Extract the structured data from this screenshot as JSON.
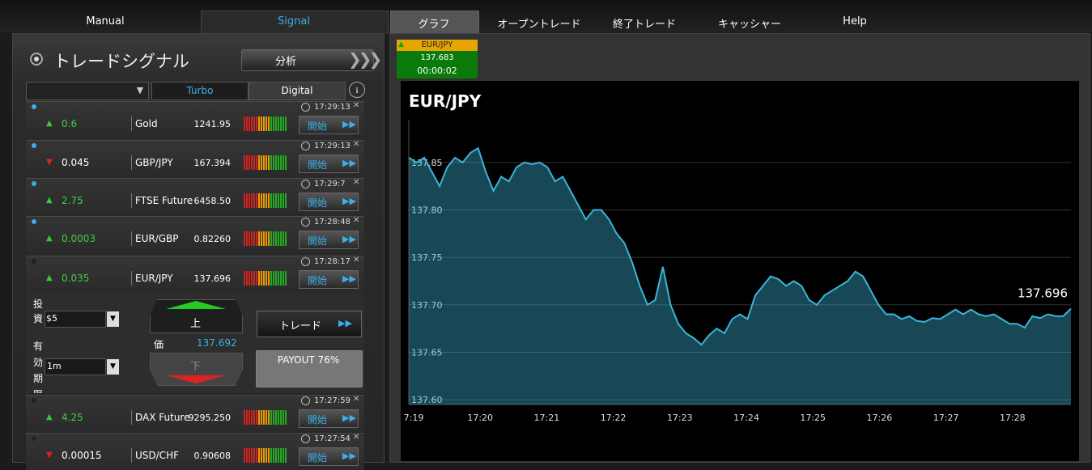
{
  "nav": {
    "tabs": [
      "Manual",
      "Signal",
      "グラフ",
      "オープントレード",
      "終了トレード",
      "キャッシャー",
      "Help"
    ]
  },
  "panel": {
    "title": "トレードシグナル",
    "analyze": "分析",
    "filters": [
      "Turbo",
      "Digital"
    ]
  },
  "signals": [
    {
      "active": true,
      "dir": "up",
      "value": "0.6",
      "asset": "Gold",
      "price": "1241.95",
      "time": "17:29:13",
      "button": "開始"
    },
    {
      "active": true,
      "dir": "down",
      "value": "0.045",
      "asset": "GBP/JPY",
      "price": "167.394",
      "time": "17:29:13",
      "button": "開始"
    },
    {
      "active": true,
      "dir": "up",
      "value": "2.75",
      "asset": "FTSE Future",
      "price": "6458.50",
      "time": "17:29:7",
      "button": "開始"
    },
    {
      "active": true,
      "dir": "up",
      "value": "0.0003",
      "asset": "EUR/GBP",
      "price": "0.82260",
      "time": "17:28:48",
      "button": "開始"
    },
    {
      "active": false,
      "dir": "up",
      "value": "0.035",
      "asset": "EUR/JPY",
      "price": "137.696",
      "time": "17:28:17",
      "button": "開始"
    },
    {
      "active": false,
      "dir": "up",
      "value": "4.25",
      "asset": "DAX Future",
      "price": "9295.250",
      "time": "17:27:59",
      "button": "開始"
    },
    {
      "active": false,
      "dir": "down",
      "value": "0.00015",
      "asset": "USD/CHF",
      "price": "0.90608",
      "time": "17:27:54",
      "button": "開始"
    }
  ],
  "trade_form": {
    "invest_label": "投資",
    "invest": "$5",
    "expiry_label": "有効期限",
    "expiry": "1m",
    "up": "上",
    "price_label": "価",
    "price": "137.692",
    "down": "下",
    "trade": "トレード",
    "payout": "PAYOUT 76%"
  },
  "ticker": {
    "asset": "EUR/JPY",
    "price": "137.683",
    "timer": "00:00:02"
  },
  "chart_data": {
    "type": "area",
    "title": "EUR/JPY",
    "color": "#3bb5d8",
    "grid": true,
    "values": [
      137.855,
      137.85,
      137.855,
      137.84,
      137.825,
      137.845,
      137.855,
      137.85,
      137.86,
      137.865,
      137.84,
      137.82,
      137.835,
      137.83,
      137.845,
      137.85,
      137.848,
      137.85,
      137.845,
      137.83,
      137.835,
      137.82,
      137.805,
      137.79,
      137.8,
      137.8,
      137.79,
      137.775,
      137.765,
      137.745,
      137.72,
      137.7,
      137.705,
      137.74,
      137.7,
      137.68,
      137.67,
      137.665,
      137.658,
      137.668,
      137.675,
      137.67,
      137.685,
      137.69,
      137.685,
      137.71,
      137.72,
      137.73,
      137.727,
      137.72,
      137.725,
      137.72,
      137.705,
      137.7,
      137.71,
      137.715,
      137.72,
      137.725,
      137.735,
      137.73,
      137.715,
      137.7,
      137.69,
      137.69,
      137.685,
      137.688,
      137.683,
      137.682,
      137.686,
      137.685,
      137.69,
      137.695,
      137.69,
      137.695,
      137.69,
      137.688,
      137.69,
      137.685,
      137.68,
      137.68,
      137.676,
      137.688,
      137.686,
      137.69,
      137.688,
      137.688,
      137.696
    ],
    "ylim": [
      137.595,
      137.895
    ],
    "yticks": [
      {
        "value": 137.6,
        "label": "137.60"
      },
      {
        "value": 137.65,
        "label": "137.65"
      },
      {
        "value": 137.7,
        "label": "137.70"
      },
      {
        "value": 137.75,
        "label": "137.75"
      },
      {
        "value": 137.8,
        "label": "137.80"
      },
      {
        "value": 137.85,
        "label": "137.85"
      }
    ],
    "x_labels": [
      "7:19",
      "17:20",
      "17:21",
      "17:22",
      "17:23",
      "17:24",
      "17:25",
      "17:26",
      "17:27",
      "17:28"
    ]
  }
}
